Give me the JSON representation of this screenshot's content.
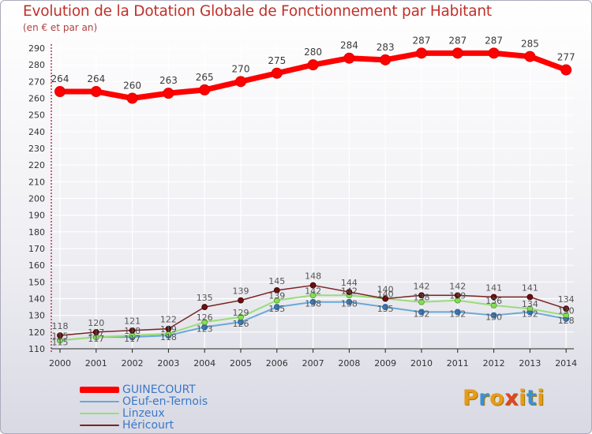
{
  "title": "Evolution de la Dotation Globale de Fonctionnement par Habitant",
  "subtitle": "(en € et par an)",
  "logo": {
    "text": "Proxiti",
    "colors": [
      "#e89a1a",
      "#3a90d6",
      "#e89a1a",
      "#e0442a",
      "#e89a1a",
      "#3a90d6",
      "#e89a1a"
    ]
  },
  "colors": {
    "title": "#c0302a",
    "axis": "#c0304a",
    "grid": "#ffffff",
    "label": "#444444"
  },
  "chart_data": {
    "type": "line",
    "title": "Evolution de la Dotation Globale de Fonctionnement par Habitant",
    "ylabel": "(en € et par an)",
    "xlabel": "",
    "ylim": [
      110,
      290
    ],
    "yticks": [
      110,
      120,
      130,
      140,
      150,
      160,
      170,
      180,
      190,
      200,
      210,
      220,
      230,
      240,
      250,
      260,
      270,
      280,
      290
    ],
    "x": [
      "2000",
      "2001",
      "2002",
      "2003",
      "2004",
      "2005",
      "2006",
      "2007",
      "2008",
      "2009",
      "2010",
      "2011",
      "2012",
      "2013",
      "2014"
    ],
    "series": [
      {
        "name": "GUINECOURT",
        "color": "#ff0000",
        "width": 7,
        "values": [
          264,
          264,
          260,
          263,
          265,
          270,
          275,
          280,
          284,
          283,
          287,
          287,
          287,
          285,
          277
        ]
      },
      {
        "name": "OEuf-en-Ternois",
        "color": "#6aa8d8",
        "width": 2,
        "values": [
          115,
          117,
          117,
          118,
          123,
          126,
          135,
          138,
          138,
          135,
          132,
          132,
          130,
          132,
          128
        ]
      },
      {
        "name": "Linzeux",
        "color": "#99dd77",
        "width": 2,
        "values": [
          115,
          117,
          118,
          119,
          126,
          129,
          139,
          142,
          142,
          140,
          138,
          139,
          136,
          134,
          130
        ]
      },
      {
        "name": "Héricourt",
        "color": "#7a2424",
        "width": 1.5,
        "values": [
          118,
          120,
          121,
          122,
          135,
          139,
          145,
          148,
          144,
          140,
          142,
          142,
          141,
          141,
          134
        ]
      }
    ],
    "labels_shown": [
      {
        "series": 0,
        "values": [
          264,
          264,
          260,
          263,
          265,
          270,
          275,
          280,
          284,
          283,
          287,
          287,
          287,
          285,
          277
        ]
      },
      {
        "series": 3,
        "values": [
          118,
          120,
          121,
          122,
          135,
          139,
          145,
          148,
          144,
          140,
          142,
          142,
          141,
          141,
          134
        ]
      },
      {
        "series": 1,
        "values": [
          115,
          117,
          117,
          118,
          123,
          126,
          135,
          138,
          138,
          135,
          132,
          132,
          130,
          132,
          128
        ]
      },
      {
        "series": 2,
        "values": [
          115,
          117,
          118,
          119,
          126,
          129,
          139,
          142,
          142,
          140,
          138,
          139,
          136,
          134,
          130
        ]
      }
    ],
    "legend": "bottom-left"
  }
}
